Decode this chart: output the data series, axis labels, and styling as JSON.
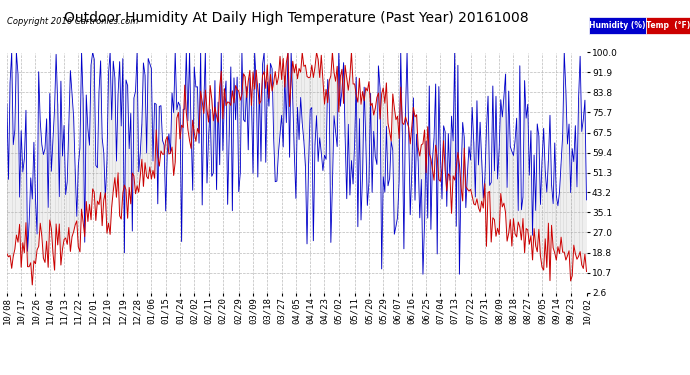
{
  "title": "Outdoor Humidity At Daily High Temperature (Past Year) 20161008",
  "copyright": "Copyright 2016 Cartronics.com",
  "legend_humidity_label": "Humidity (%)",
  "legend_temp_label": "Temp  (°F)",
  "legend_humidity_bg": "#0000cc",
  "legend_temp_bg": "#cc0000",
  "yticks": [
    2.6,
    10.7,
    18.8,
    27.0,
    35.1,
    43.2,
    51.3,
    59.4,
    67.5,
    75.7,
    83.8,
    91.9,
    100.0
  ],
  "ylim": [
    2.6,
    100.0
  ],
  "background_color": "#ffffff",
  "plot_bg_color": "#ffffff",
  "grid_color": "#aaaaaa",
  "humidity_color": "#0000cc",
  "temp_color": "#cc0000",
  "dark_line_color": "#222222",
  "title_fontsize": 10,
  "tick_fontsize": 6.5,
  "x_tick_dates": [
    "10/08",
    "10/17",
    "10/26",
    "11/04",
    "11/13",
    "11/22",
    "12/01",
    "12/10",
    "12/19",
    "12/28",
    "01/06",
    "01/15",
    "01/24",
    "02/02",
    "02/11",
    "02/20",
    "02/29",
    "03/09",
    "03/18",
    "03/27",
    "04/05",
    "04/14",
    "04/23",
    "05/02",
    "05/11",
    "05/20",
    "05/29",
    "06/07",
    "06/16",
    "06/25",
    "07/04",
    "07/13",
    "07/22",
    "07/31",
    "08/09",
    "08/18",
    "08/27",
    "09/05",
    "09/14",
    "09/23",
    "10/02"
  ],
  "n_points": 366,
  "seed": 42
}
